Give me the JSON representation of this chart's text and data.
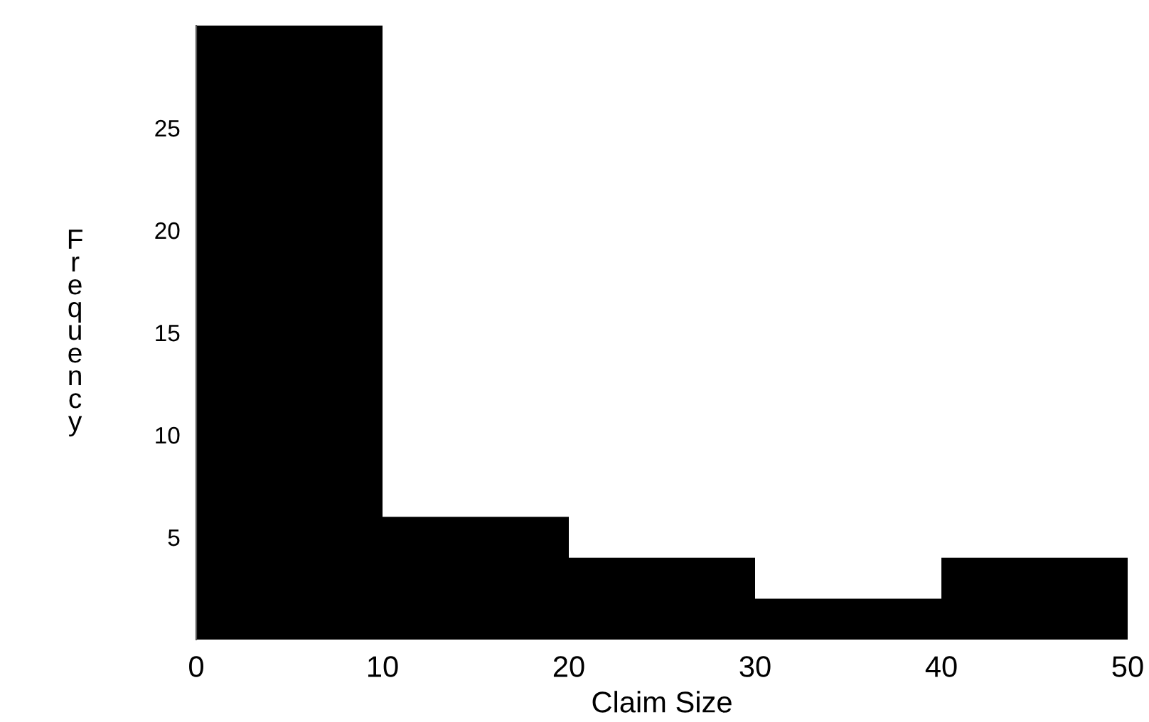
{
  "chart_data": {
    "type": "histogram",
    "xlabel": "Claim Size",
    "ylabel": "Frequency",
    "bins": [
      0,
      10,
      20,
      30,
      40,
      50
    ],
    "values": [
      30,
      6,
      4,
      2,
      4
    ],
    "color": "#000000",
    "xlim": [
      0,
      50
    ],
    "xticks": [
      0,
      10,
      20,
      30,
      40,
      50
    ],
    "ylim": [
      0,
      30
    ],
    "yticks": [
      5,
      10,
      15,
      20,
      25
    ],
    "grid": false,
    "legend": false
  }
}
